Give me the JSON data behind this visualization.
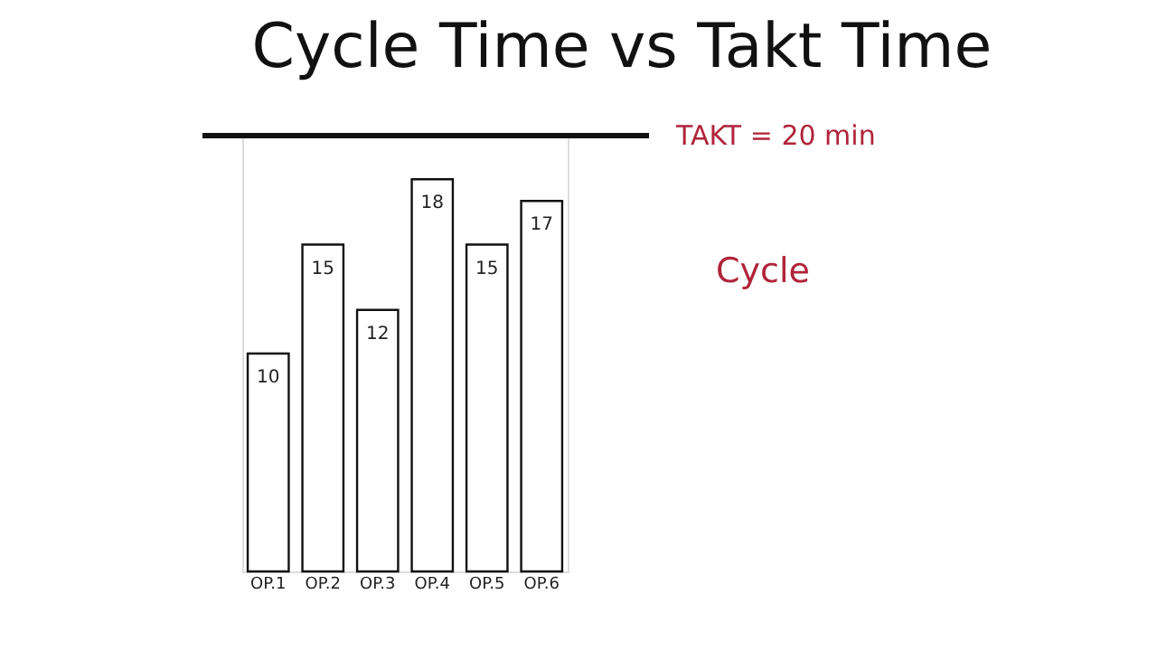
{
  "chart_data": {
    "type": "bar",
    "title": "Cycle Time vs Takt Time",
    "categories": [
      "OP.1",
      "OP.2",
      "OP.3",
      "OP.4",
      "OP.5",
      "OP.6"
    ],
    "values": [
      10,
      15,
      12,
      18,
      15,
      17
    ],
    "color": "#ffffff",
    "data_labels": true,
    "tick_labels": "x",
    "grid": false,
    "ref_lines": [
      {
        "axis": "y",
        "value": 20,
        "label": "TAKT = 20 min"
      }
    ],
    "annotations": [
      "Cycle"
    ]
  }
}
